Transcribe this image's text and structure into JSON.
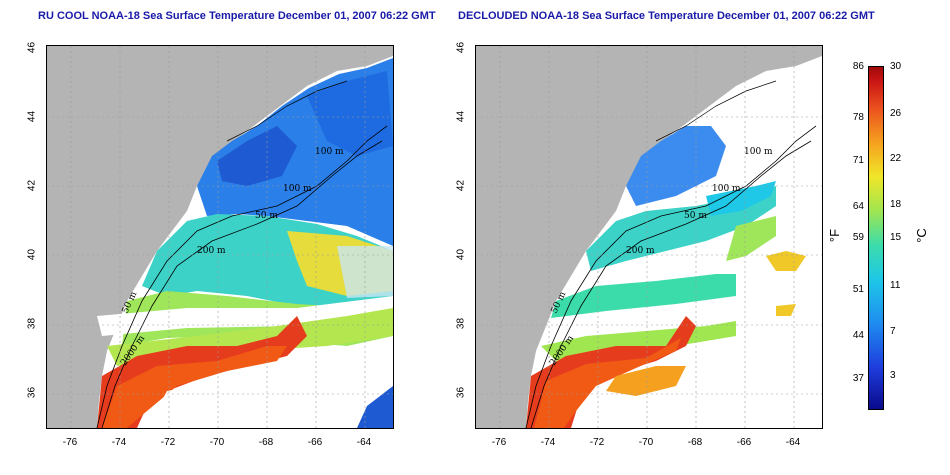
{
  "panels": [
    {
      "title": "RU COOL NOAA-18 Sea Surface Temperature December 01, 2007 06:22 GMT"
    },
    {
      "title": "DECLOUDED NOAA-18 Sea Surface Temperature December 01, 2007 06:22 GMT"
    }
  ],
  "axes": {
    "x_ticks": [
      "-76",
      "-74",
      "-72",
      "-70",
      "-68",
      "-66",
      "-64"
    ],
    "y_ticks": [
      "46",
      "44",
      "42",
      "40",
      "38",
      "36"
    ]
  },
  "contour_labels": [
    "100 m",
    "100 m",
    "50 m",
    "200 m",
    "50 m",
    "2000 m"
  ],
  "colorbar": {
    "fahrenheit_ticks": [
      "86",
      "78",
      "71",
      "64",
      "59",
      "51",
      "44",
      "37"
    ],
    "celsius_ticks": [
      "30",
      "26",
      "22",
      "18",
      "15",
      "11",
      "7",
      "3"
    ],
    "left_unit": "°F",
    "right_unit": "°C"
  },
  "colors": {
    "land": "#b4b4b4",
    "cloud": "#ffffff",
    "title": "#1a1aa8"
  }
}
